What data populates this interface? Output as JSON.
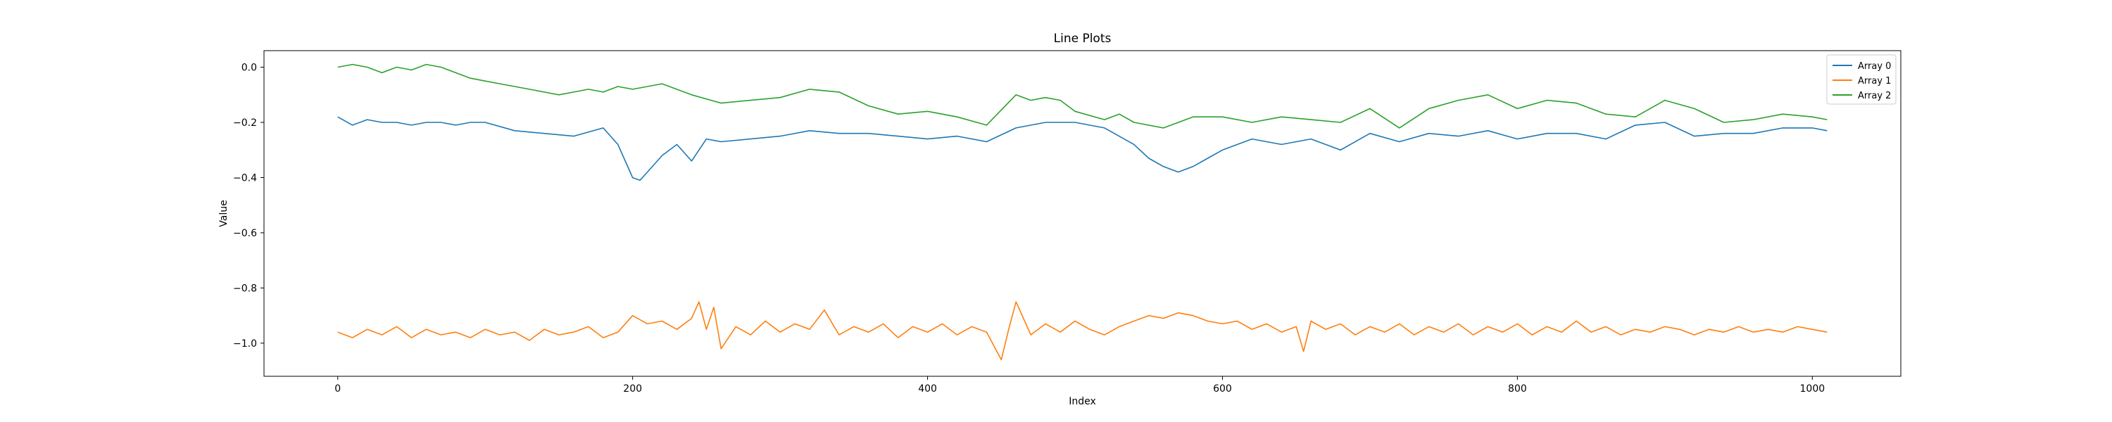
{
  "chart_data": {
    "type": "line",
    "title": "Line Plots",
    "xlabel": "Index",
    "ylabel": "Value",
    "xlim": [
      -50,
      1060
    ],
    "ylim": [
      -1.12,
      0.06
    ],
    "xticks": [
      0,
      200,
      400,
      600,
      800,
      1000
    ],
    "xtick_labels": [
      "0",
      "200",
      "400",
      "600",
      "800",
      "1000"
    ],
    "yticks": [
      0.0,
      -0.2,
      -0.4,
      -0.6,
      -0.8,
      -1.0
    ],
    "ytick_labels": [
      "0.0",
      "−0.2",
      "−0.4",
      "−0.6",
      "−0.8",
      "−1.0"
    ],
    "grid": false,
    "legend_position": "top-right",
    "series": [
      {
        "name": "Array 0",
        "color": "#1f77b4",
        "x": [
          0,
          10,
          20,
          30,
          40,
          50,
          60,
          70,
          80,
          90,
          100,
          120,
          140,
          160,
          180,
          190,
          200,
          205,
          210,
          220,
          230,
          240,
          250,
          260,
          280,
          300,
          320,
          340,
          360,
          380,
          400,
          420,
          440,
          460,
          480,
          500,
          520,
          540,
          550,
          560,
          570,
          580,
          590,
          600,
          620,
          640,
          660,
          680,
          700,
          720,
          740,
          760,
          780,
          800,
          820,
          840,
          860,
          880,
          900,
          920,
          940,
          960,
          980,
          1000,
          1010
        ],
        "y": [
          -0.18,
          -0.21,
          -0.19,
          -0.2,
          -0.2,
          -0.21,
          -0.2,
          -0.2,
          -0.21,
          -0.2,
          -0.2,
          -0.23,
          -0.24,
          -0.25,
          -0.22,
          -0.28,
          -0.4,
          -0.41,
          -0.38,
          -0.32,
          -0.28,
          -0.34,
          -0.26,
          -0.27,
          -0.26,
          -0.25,
          -0.23,
          -0.24,
          -0.24,
          -0.25,
          -0.26,
          -0.25,
          -0.27,
          -0.22,
          -0.2,
          -0.2,
          -0.22,
          -0.28,
          -0.33,
          -0.36,
          -0.38,
          -0.36,
          -0.33,
          -0.3,
          -0.26,
          -0.28,
          -0.26,
          -0.3,
          -0.24,
          -0.27,
          -0.24,
          -0.25,
          -0.23,
          -0.26,
          -0.24,
          -0.24,
          -0.26,
          -0.21,
          -0.2,
          -0.25,
          -0.24,
          -0.24,
          -0.22,
          -0.22,
          -0.23
        ]
      },
      {
        "name": "Array 1",
        "color": "#ff7f0e",
        "x": [
          0,
          10,
          20,
          30,
          40,
          50,
          60,
          70,
          80,
          90,
          100,
          110,
          120,
          130,
          140,
          150,
          160,
          170,
          180,
          190,
          200,
          210,
          220,
          230,
          240,
          245,
          250,
          255,
          260,
          270,
          280,
          290,
          300,
          310,
          320,
          330,
          340,
          350,
          360,
          370,
          380,
          390,
          400,
          410,
          420,
          430,
          440,
          450,
          455,
          460,
          470,
          480,
          490,
          500,
          510,
          520,
          530,
          540,
          550,
          560,
          570,
          580,
          590,
          600,
          610,
          620,
          630,
          640,
          650,
          655,
          660,
          670,
          680,
          690,
          700,
          710,
          720,
          730,
          740,
          750,
          760,
          770,
          780,
          790,
          800,
          810,
          820,
          830,
          840,
          850,
          860,
          870,
          880,
          890,
          900,
          910,
          920,
          930,
          940,
          950,
          960,
          970,
          980,
          990,
          1000,
          1010
        ],
        "y": [
          -0.96,
          -0.98,
          -0.95,
          -0.97,
          -0.94,
          -0.98,
          -0.95,
          -0.97,
          -0.96,
          -0.98,
          -0.95,
          -0.97,
          -0.96,
          -0.99,
          -0.95,
          -0.97,
          -0.96,
          -0.94,
          -0.98,
          -0.96,
          -0.9,
          -0.93,
          -0.92,
          -0.95,
          -0.91,
          -0.85,
          -0.95,
          -0.87,
          -1.02,
          -0.94,
          -0.97,
          -0.92,
          -0.96,
          -0.93,
          -0.95,
          -0.88,
          -0.97,
          -0.94,
          -0.96,
          -0.93,
          -0.98,
          -0.94,
          -0.96,
          -0.93,
          -0.97,
          -0.94,
          -0.96,
          -1.06,
          -0.95,
          -0.85,
          -0.97,
          -0.93,
          -0.96,
          -0.92,
          -0.95,
          -0.97,
          -0.94,
          -0.92,
          -0.9,
          -0.91,
          -0.89,
          -0.9,
          -0.92,
          -0.93,
          -0.92,
          -0.95,
          -0.93,
          -0.96,
          -0.94,
          -1.03,
          -0.92,
          -0.95,
          -0.93,
          -0.97,
          -0.94,
          -0.96,
          -0.93,
          -0.97,
          -0.94,
          -0.96,
          -0.93,
          -0.97,
          -0.94,
          -0.96,
          -0.93,
          -0.97,
          -0.94,
          -0.96,
          -0.92,
          -0.96,
          -0.94,
          -0.97,
          -0.95,
          -0.96,
          -0.94,
          -0.95,
          -0.97,
          -0.95,
          -0.96,
          -0.94,
          -0.96,
          -0.95,
          -0.96,
          -0.94,
          -0.95,
          -0.96
        ]
      },
      {
        "name": "Array 2",
        "color": "#2ca02c",
        "x": [
          0,
          10,
          20,
          30,
          40,
          50,
          60,
          70,
          80,
          90,
          100,
          110,
          120,
          130,
          140,
          150,
          160,
          170,
          180,
          190,
          200,
          220,
          240,
          260,
          280,
          300,
          320,
          340,
          360,
          380,
          400,
          420,
          440,
          460,
          470,
          480,
          490,
          500,
          520,
          530,
          540,
          560,
          580,
          600,
          620,
          640,
          660,
          680,
          700,
          720,
          740,
          760,
          780,
          800,
          820,
          840,
          860,
          880,
          900,
          920,
          940,
          960,
          980,
          1000,
          1010
        ],
        "y": [
          0.0,
          0.01,
          0.0,
          -0.02,
          0.0,
          -0.01,
          0.01,
          0.0,
          -0.02,
          -0.04,
          -0.05,
          -0.06,
          -0.07,
          -0.08,
          -0.09,
          -0.1,
          -0.09,
          -0.08,
          -0.09,
          -0.07,
          -0.08,
          -0.06,
          -0.1,
          -0.13,
          -0.12,
          -0.11,
          -0.08,
          -0.09,
          -0.14,
          -0.17,
          -0.16,
          -0.18,
          -0.21,
          -0.1,
          -0.12,
          -0.11,
          -0.12,
          -0.16,
          -0.19,
          -0.17,
          -0.2,
          -0.22,
          -0.18,
          -0.18,
          -0.2,
          -0.18,
          -0.19,
          -0.2,
          -0.15,
          -0.22,
          -0.15,
          -0.12,
          -0.1,
          -0.15,
          -0.12,
          -0.13,
          -0.17,
          -0.18,
          -0.12,
          -0.15,
          -0.2,
          -0.19,
          -0.17,
          -0.18,
          -0.19
        ]
      }
    ]
  }
}
